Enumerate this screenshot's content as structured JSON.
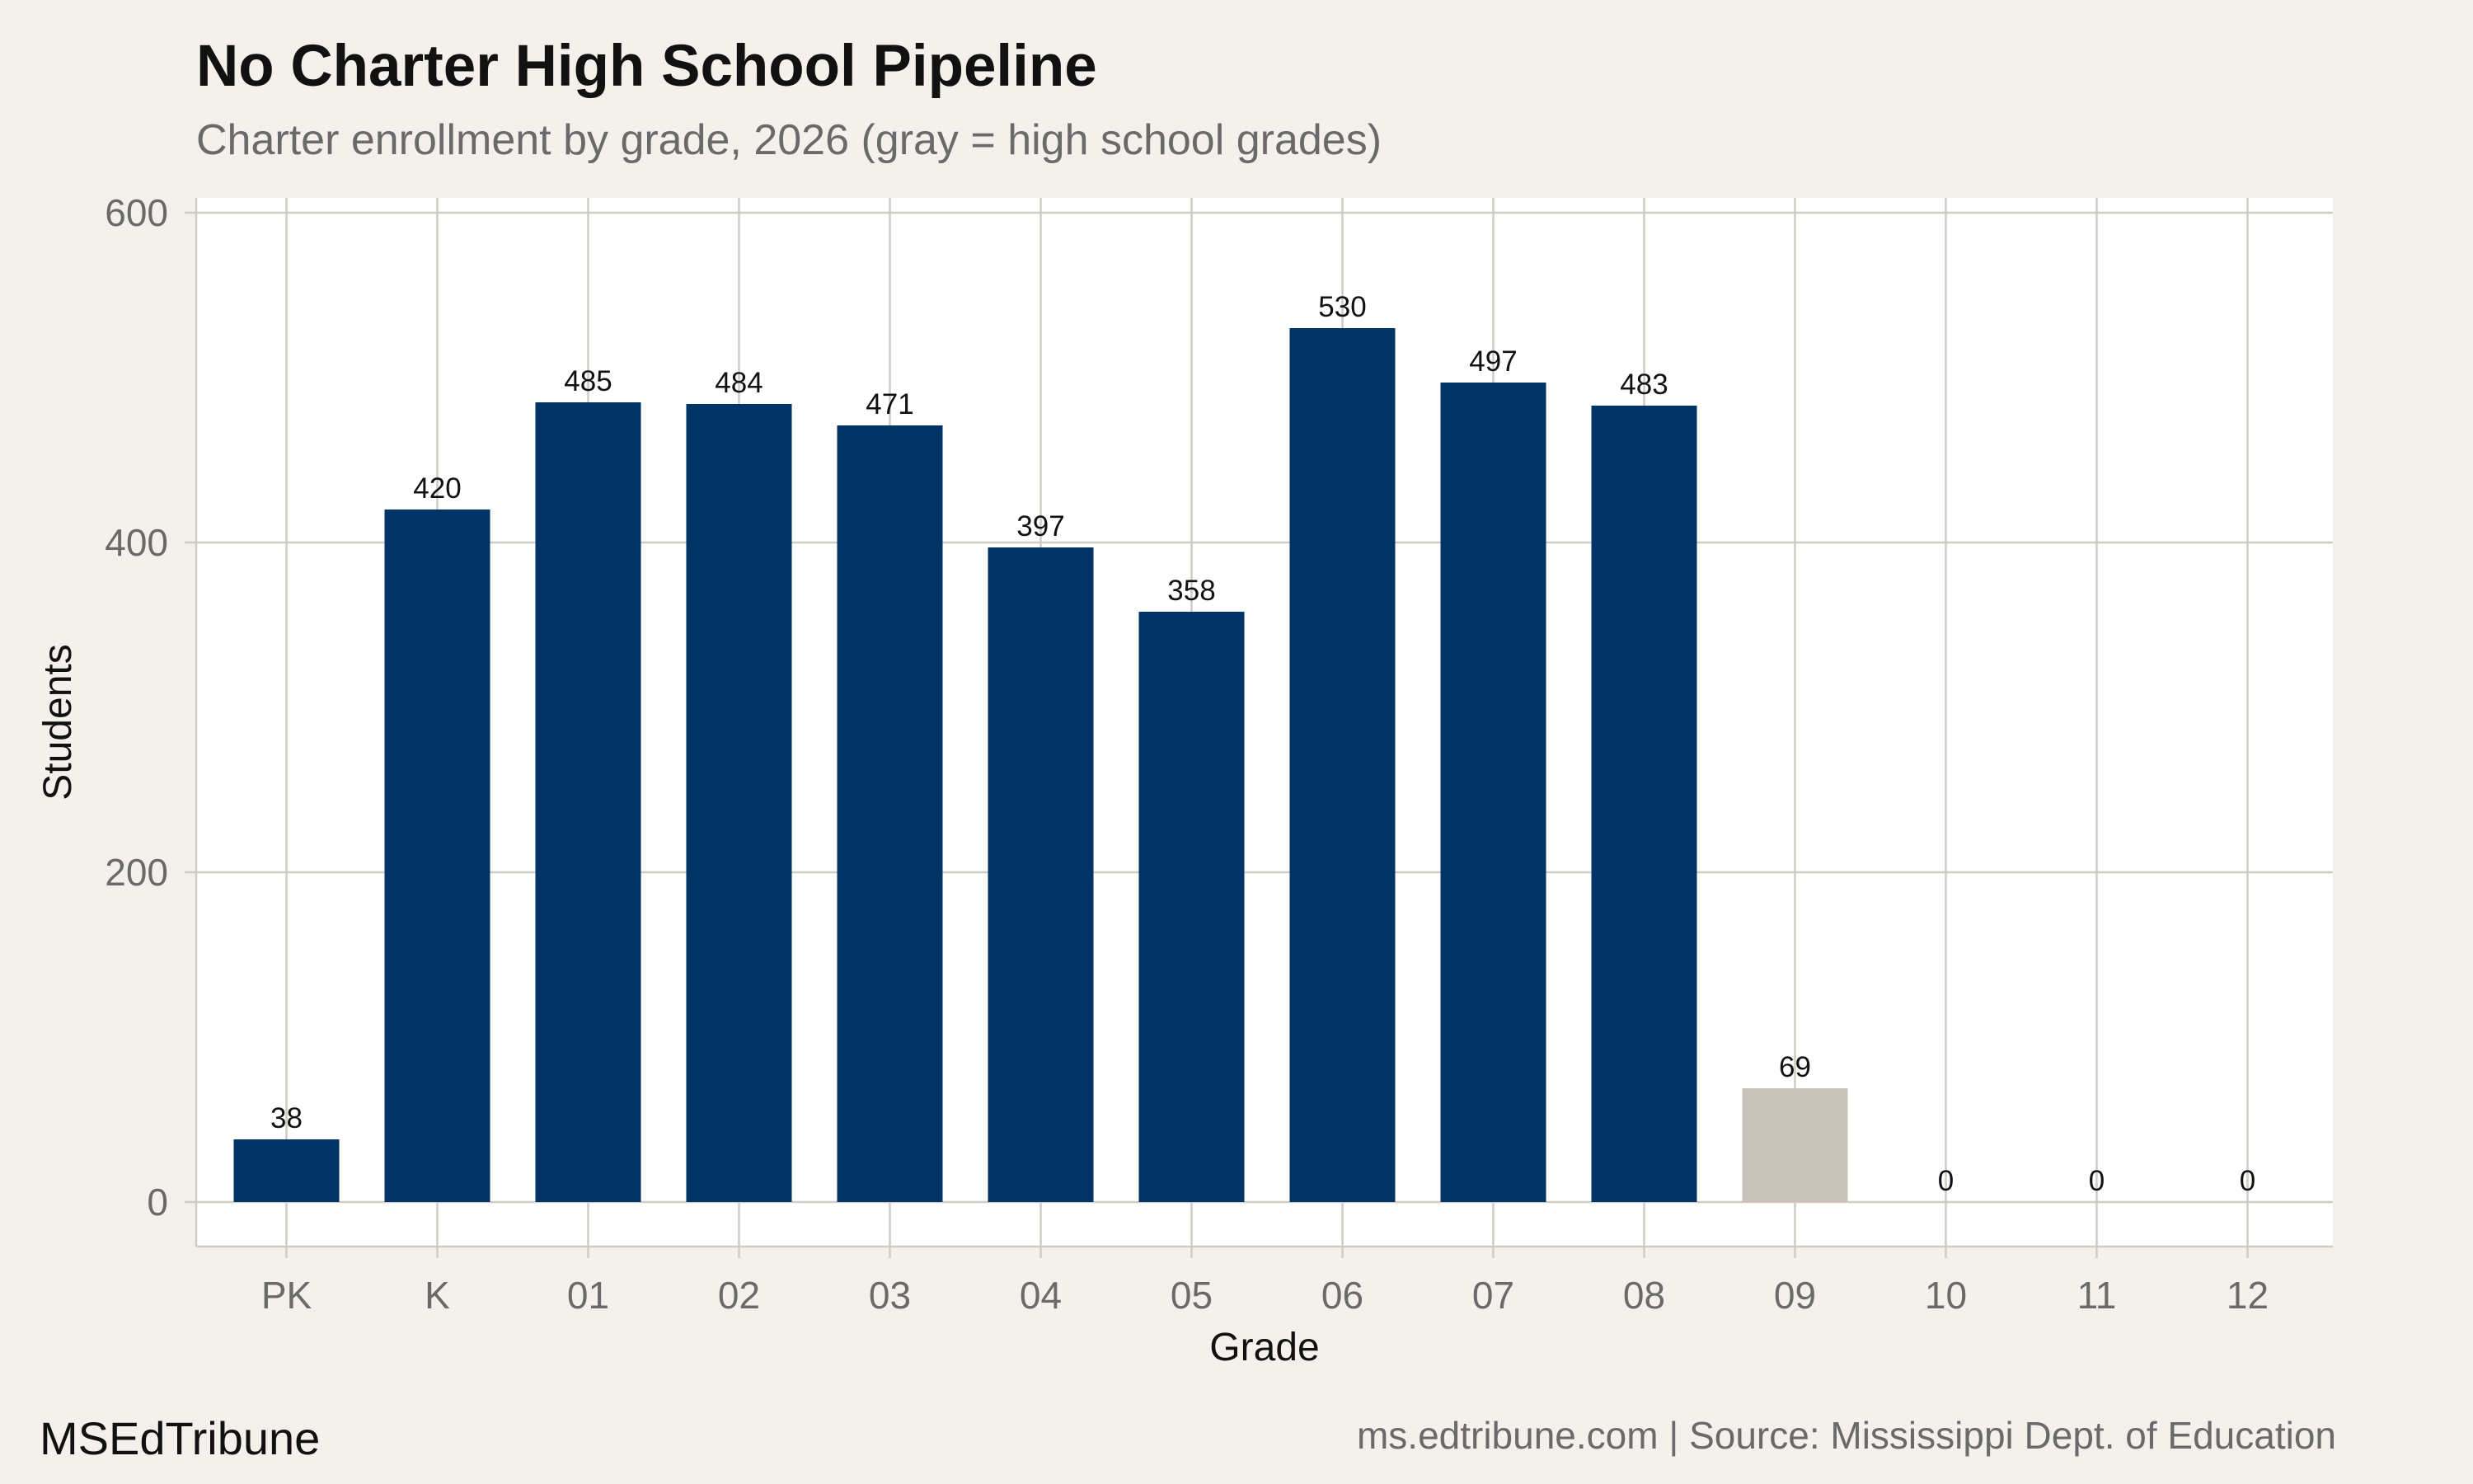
{
  "header": {
    "title": "No Charter High School Pipeline",
    "subtitle": "Charter enrollment by grade, 2026 (gray = high school grades)"
  },
  "footer": {
    "brand": "MSEdTribune",
    "source": "ms.edtribune.com | Source: Mississippi Dept. of Education"
  },
  "colors": {
    "background": "#f4f1ec",
    "panel": "#ffffff",
    "bar_primary": "#003366",
    "bar_high_school": "#c9c2b8",
    "grid": "#cfccc6"
  },
  "chart_data": {
    "type": "bar",
    "title": "No Charter High School Pipeline",
    "subtitle": "Charter enrollment by grade, 2026 (gray = high school grades)",
    "xlabel": "Grade",
    "ylabel": "Students",
    "categories": [
      "PK",
      "K",
      "01",
      "02",
      "03",
      "04",
      "05",
      "06",
      "07",
      "08",
      "09",
      "10",
      "11",
      "12"
    ],
    "values": [
      38,
      420,
      485,
      484,
      471,
      397,
      358,
      530,
      497,
      483,
      69,
      0,
      0,
      0
    ],
    "high_school": [
      false,
      false,
      false,
      false,
      false,
      false,
      false,
      false,
      false,
      false,
      true,
      true,
      true,
      true
    ],
    "ylim": [
      0,
      600
    ],
    "yticks": [
      0,
      200,
      400,
      600
    ],
    "grid": true,
    "legend": "none"
  }
}
